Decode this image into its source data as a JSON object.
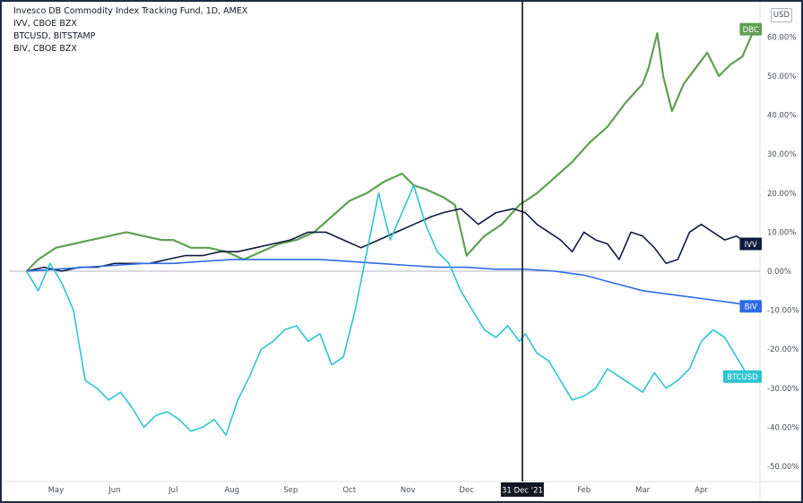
{
  "legend": {
    "line1": "Invesco DB Commodity Index Tracking Fund, 1D, AMEX",
    "line2": "IVV, CBOE BZX",
    "line3": "BTCUSD, BITSTAMP",
    "line4": "BIV, CBOE BZX"
  },
  "currency_badge": "USD",
  "crosshair_label": "31 Dec '21",
  "chart_data": {
    "type": "line",
    "title": "",
    "x_tick_labels": [
      "May",
      "Jun",
      "Jul",
      "Aug",
      "Sep",
      "Oct",
      "Nov",
      "Dec",
      "Feb",
      "Mar",
      "Apr"
    ],
    "y_tick_labels": [
      "60.00%",
      "50.00%",
      "40.00%",
      "30.00%",
      "20.00%",
      "10.00%",
      "0.00%",
      "-10.00%",
      "-20.00%",
      "-30.00%",
      "-40.00%",
      "-50.00%"
    ],
    "ylim": [
      -50,
      62
    ],
    "y_unit": "%",
    "grid": false,
    "zero_line": true,
    "x_unit": "month of year, 1 = Jan; values > 12 are the following year",
    "series": [
      {
        "name": "DBC",
        "color": "#5fa052",
        "x": [
          4.5,
          4.7,
          5.0,
          5.3,
          5.6,
          5.9,
          6.2,
          6.5,
          6.8,
          7.0,
          7.3,
          7.6,
          7.9,
          8.2,
          8.5,
          8.8,
          9.1,
          9.4,
          9.7,
          10.0,
          10.3,
          10.6,
          10.9,
          11.1,
          11.3,
          11.6,
          11.8,
          12.0,
          12.3,
          12.6,
          12.9,
          13.2,
          13.5,
          13.8,
          14.1,
          14.4,
          14.7,
          15.0,
          15.1,
          15.25,
          15.35,
          15.5,
          15.7,
          15.9,
          16.1,
          16.3,
          16.5,
          16.7,
          16.9
        ],
        "values": [
          0,
          3,
          6,
          7,
          8,
          9,
          10,
          9,
          8,
          8,
          6,
          6,
          5,
          3,
          5,
          7,
          8,
          10,
          14,
          18,
          20,
          23,
          25,
          22,
          21,
          19,
          17,
          4,
          9,
          12,
          17,
          20,
          24,
          28,
          33,
          37,
          43,
          48,
          52,
          61,
          50,
          41,
          48,
          52,
          56,
          50,
          53,
          55,
          62
        ]
      },
      {
        "name": "IVV",
        "color": "#0f1c3f",
        "x": [
          4.5,
          4.8,
          5.1,
          5.4,
          5.7,
          6.0,
          6.3,
          6.6,
          6.9,
          7.2,
          7.5,
          7.8,
          8.1,
          8.4,
          8.7,
          9.0,
          9.3,
          9.6,
          9.9,
          10.2,
          10.5,
          10.8,
          11.1,
          11.4,
          11.6,
          11.9,
          12.2,
          12.5,
          12.8,
          13.0,
          13.2,
          13.4,
          13.6,
          13.8,
          14.0,
          14.2,
          14.4,
          14.6,
          14.8,
          15.0,
          15.2,
          15.4,
          15.6,
          15.8,
          16.0,
          16.2,
          16.4,
          16.6,
          16.8
        ],
        "values": [
          0,
          1,
          0,
          1,
          1,
          2,
          2,
          2,
          3,
          4,
          4,
          5,
          5,
          6,
          7,
          8,
          10,
          10,
          8,
          6,
          8,
          10,
          12,
          14,
          15,
          16,
          12,
          15,
          16,
          15,
          12,
          10,
          8,
          5,
          10,
          8,
          7,
          3,
          10,
          9,
          6,
          2,
          3,
          10,
          12,
          10,
          8,
          9,
          7
        ]
      },
      {
        "name": "BIV",
        "color": "#2e6be6",
        "x": [
          4.5,
          5.0,
          5.5,
          6.0,
          6.5,
          7.0,
          7.5,
          8.0,
          8.5,
          9.0,
          9.5,
          10.0,
          10.5,
          11.0,
          11.5,
          12.0,
          12.5,
          13.0,
          13.5,
          14.0,
          14.5,
          15.0,
          15.5,
          16.0,
          16.5,
          16.9
        ],
        "values": [
          0,
          0.5,
          1,
          1.5,
          2,
          2,
          2.5,
          3,
          3,
          3,
          3,
          2.5,
          2,
          1.5,
          1,
          1,
          0.5,
          0.5,
          0,
          -1,
          -3,
          -5,
          -6,
          -7,
          -8,
          -9
        ]
      },
      {
        "name": "BTCUSD",
        "color": "#2ec4d1",
        "x": [
          4.5,
          4.7,
          4.9,
          5.1,
          5.3,
          5.5,
          5.7,
          5.9,
          6.1,
          6.3,
          6.5,
          6.7,
          6.9,
          7.1,
          7.3,
          7.5,
          7.7,
          7.9,
          8.1,
          8.3,
          8.5,
          8.7,
          8.9,
          9.1,
          9.3,
          9.5,
          9.7,
          9.9,
          10.1,
          10.3,
          10.5,
          10.7,
          10.9,
          11.1,
          11.3,
          11.5,
          11.7,
          11.9,
          12.1,
          12.3,
          12.5,
          12.7,
          12.9,
          13.0,
          13.2,
          13.4,
          13.6,
          13.8,
          14.0,
          14.2,
          14.4,
          14.6,
          14.8,
          15.0,
          15.2,
          15.4,
          15.6,
          15.8,
          16.0,
          16.2,
          16.4,
          16.6,
          16.8
        ],
        "values": [
          0,
          -5,
          2,
          -3,
          -10,
          -28,
          -30,
          -33,
          -31,
          -35,
          -40,
          -37,
          -36,
          -38,
          -41,
          -40,
          -38,
          -42,
          -33,
          -27,
          -20,
          -18,
          -15,
          -14,
          -18,
          -16,
          -24,
          -22,
          -10,
          5,
          20,
          8,
          15,
          22,
          12,
          5,
          2,
          -5,
          -10,
          -15,
          -17,
          -14,
          -18,
          -16,
          -21,
          -23,
          -28,
          -33,
          -32,
          -30,
          -25,
          -27,
          -29,
          -31,
          -26,
          -30,
          -28,
          -25,
          -18,
          -15,
          -17,
          -22,
          -27
        ]
      }
    ]
  }
}
